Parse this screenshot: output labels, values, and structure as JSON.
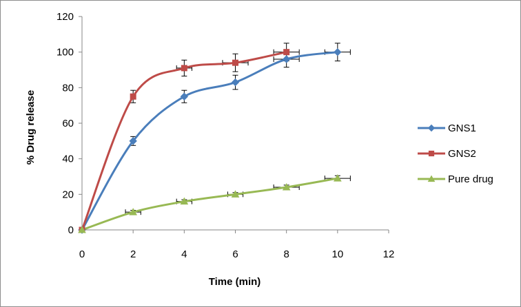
{
  "chart_data": {
    "type": "line",
    "xlabel": "Time  (min)",
    "ylabel": "% Drug release",
    "xlim": [
      0,
      12
    ],
    "ylim": [
      0,
      120
    ],
    "xticks": [
      0,
      2,
      4,
      6,
      8,
      10,
      12
    ],
    "yticks": [
      0,
      20,
      40,
      60,
      80,
      100,
      120
    ],
    "grid": false,
    "legend_position": "right",
    "series": [
      {
        "name": "GNS1",
        "color": "#4a7ebb",
        "marker": "diamond",
        "x": [
          0,
          2,
          4,
          6,
          8,
          10
        ],
        "y": [
          0,
          50,
          75,
          83,
          96,
          100
        ],
        "yerr": [
          0,
          2.5,
          3.5,
          4,
          4.5,
          5
        ],
        "xerr": [
          0,
          0,
          0,
          0,
          0.5,
          0.5
        ]
      },
      {
        "name": "GNS2",
        "color": "#be4b48",
        "marker": "square",
        "x": [
          0,
          2,
          4,
          6,
          8
        ],
        "y": [
          0,
          75,
          91,
          94,
          100
        ],
        "yerr": [
          0,
          3.5,
          4.5,
          5,
          5
        ],
        "xerr": [
          0,
          0,
          0.3,
          0.5,
          0.5
        ]
      },
      {
        "name": "Pure drug",
        "color": "#98b954",
        "marker": "triangle",
        "x": [
          0,
          2,
          4,
          6,
          8,
          10
        ],
        "y": [
          0,
          10,
          16,
          20,
          24,
          29
        ],
        "yerr": [
          0,
          1,
          1,
          1,
          1.2,
          1.5
        ],
        "xerr": [
          0,
          0.3,
          0.3,
          0.3,
          0.5,
          0.5
        ]
      }
    ]
  }
}
